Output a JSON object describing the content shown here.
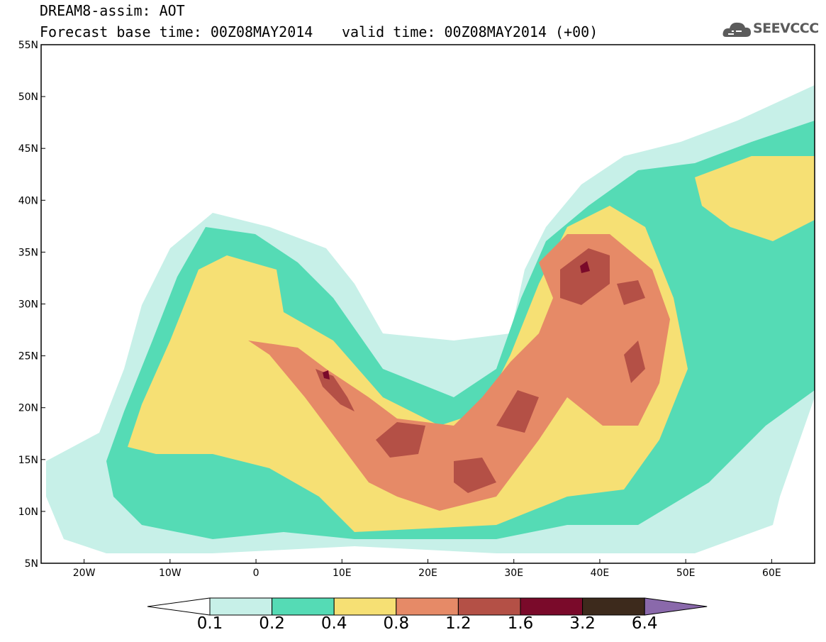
{
  "header": {
    "title": "DREAM8-assim: AOT",
    "base_time": "Forecast base time: 00Z08MAY2014",
    "valid_time": "valid time: 00Z08MAY2014 (+00)"
  },
  "logo": {
    "text": "SEEVCCC",
    "icon": "cloud-icon"
  },
  "map": {
    "lon_range": [
      -25,
      65
    ],
    "lat_range": [
      5,
      55
    ],
    "lat_ticks": [
      {
        "value": 55,
        "label": "55N"
      },
      {
        "value": 50,
        "label": "50N"
      },
      {
        "value": 45,
        "label": "45N"
      },
      {
        "value": 40,
        "label": "40N"
      },
      {
        "value": 35,
        "label": "35N"
      },
      {
        "value": 30,
        "label": "30N"
      },
      {
        "value": 25,
        "label": "25N"
      },
      {
        "value": 20,
        "label": "20N"
      },
      {
        "value": 15,
        "label": "15N"
      },
      {
        "value": 10,
        "label": "10N"
      },
      {
        "value": 5,
        "label": "5N"
      }
    ],
    "lon_ticks": [
      {
        "value": -20,
        "label": "20W"
      },
      {
        "value": -10,
        "label": "10W"
      },
      {
        "value": 0,
        "label": "0"
      },
      {
        "value": 10,
        "label": "10E"
      },
      {
        "value": 20,
        "label": "20E"
      },
      {
        "value": 30,
        "label": "30E"
      },
      {
        "value": 40,
        "label": "40E"
      },
      {
        "value": 50,
        "label": "50E"
      },
      {
        "value": 60,
        "label": "60E"
      }
    ]
  },
  "colorbar": {
    "labels": [
      "0.1",
      "0.2",
      "0.4",
      "0.8",
      "1.2",
      "1.6",
      "3.2",
      "6.4"
    ],
    "colors": [
      "#c7f0e8",
      "#55dbb5",
      "#f6e074",
      "#e68a67",
      "#b45046",
      "#7a0a2a",
      "#3d2a1c",
      "#8a69ab"
    ]
  }
}
